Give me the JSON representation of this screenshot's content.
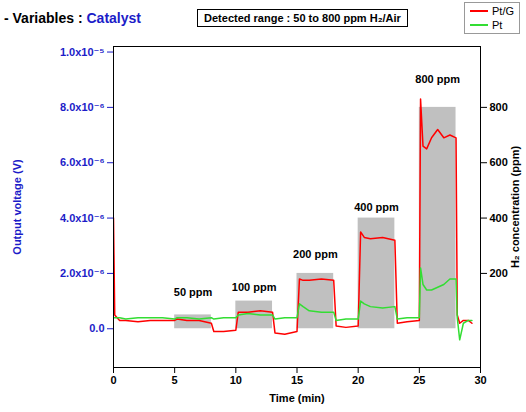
{
  "chart_data": {
    "type": "line",
    "title": [
      "- Variables : ",
      "Catalyst"
    ],
    "note": "Detected range : 50 to 800 ppm H₂/Air",
    "x_label": "Time (min)",
    "y_label": "Output voltage (V)",
    "y2_label": "H₂ concentration (ppm)",
    "xlim": [
      0,
      30
    ],
    "xticks": [
      0,
      5,
      10,
      15,
      20,
      25,
      30
    ],
    "ylim": [
      -1.4e-06,
      1.02e-05
    ],
    "yticks": [
      {
        "value": 0,
        "label": "0.0"
      },
      {
        "value": 2e-06,
        "label": "2.0x10⁻⁶"
      },
      {
        "value": 4e-06,
        "label": "4.0x10⁻⁶"
      },
      {
        "value": 6e-06,
        "label": "6.0x10⁻⁶"
      },
      {
        "value": 8e-06,
        "label": "8.0x10⁻⁶"
      },
      {
        "value": 1e-05,
        "label": "1.0x10⁻⁵"
      }
    ],
    "y2lim": [
      -140,
      1020
    ],
    "y2ticks": [
      200,
      400,
      600,
      800
    ],
    "grid": false,
    "legend": "top-right",
    "x": [
      0,
      0.1,
      0.5,
      1,
      2,
      3,
      4,
      5,
      5.2,
      6,
      7,
      8,
      8.2,
      9,
      10,
      10.2,
      11,
      12,
      13,
      13.2,
      14,
      15,
      15.2,
      15.5,
      16,
      17,
      18,
      18.2,
      19,
      20,
      20.2,
      20.5,
      21,
      22,
      23,
      23.2,
      24,
      25,
      25.1,
      25.3,
      25.6,
      26,
      26.5,
      27,
      27.5,
      28,
      28.1,
      28.3,
      28.6,
      29,
      29.3
    ],
    "series": [
      {
        "name": "Pt/G",
        "color": "#ff0000",
        "values": [
          4e-06,
          5e-07,
          3e-07,
          3e-07,
          2.5e-07,
          3e-07,
          3e-07,
          3e-07,
          3.5e-07,
          3e-07,
          3e-07,
          2e-07,
          -1e-07,
          -1e-07,
          -5e-08,
          6e-07,
          6e-07,
          6.5e-07,
          6e-07,
          -1.5e-07,
          -2e-07,
          -1e-07,
          1.8e-06,
          1.75e-06,
          1.75e-06,
          1.8e-06,
          1.75e-06,
          1e-07,
          5e-08,
          1e-07,
          3.5e-06,
          3.3e-06,
          3.25e-06,
          3.3e-06,
          3.2e-06,
          2e-07,
          2.5e-07,
          3e-07,
          8.3e-06,
          6.6e-06,
          6.5e-06,
          6.9e-06,
          7.2e-06,
          6.9e-06,
          7e-06,
          6.9e-06,
          5e-07,
          2e-07,
          3e-07,
          3e-07,
          2e-07
        ]
      },
      {
        "name": "Pt",
        "color": "#33dd33",
        "values": [
          4e-07,
          4e-07,
          4e-07,
          3.5e-07,
          4e-07,
          4e-07,
          4e-07,
          3.5e-07,
          4e-07,
          4e-07,
          3.5e-07,
          4e-07,
          3.5e-07,
          4e-07,
          4e-07,
          5e-07,
          5.5e-07,
          5e-07,
          5e-07,
          3.5e-07,
          4e-07,
          4e-07,
          9e-07,
          8e-07,
          6.5e-07,
          6e-07,
          6e-07,
          3e-07,
          3.5e-07,
          3.5e-07,
          1e-06,
          9e-07,
          8e-07,
          7.5e-07,
          8e-07,
          3.5e-07,
          4e-07,
          4e-07,
          2.2e-06,
          1.6e-06,
          1.4e-06,
          1.4e-06,
          1.5e-06,
          1.6e-06,
          1.8e-06,
          1.8e-06,
          4e-07,
          -4e-07,
          2e-07,
          3e-07,
          3e-07
        ]
      }
    ],
    "bars": {
      "type": "bar",
      "axis": "y2",
      "color": "#c0c0c0",
      "x_start": [
        5,
        10,
        15,
        20,
        25
      ],
      "x_end": [
        8,
        13,
        18,
        23,
        28
      ],
      "values": [
        50,
        100,
        200,
        400,
        800
      ]
    },
    "annotations": [
      {
        "text": "50 ppm",
        "x": 6.5,
        "y": 1.3e-06
      },
      {
        "text": "100 ppm",
        "x": 11.5,
        "y": 1.5e-06
      },
      {
        "text": "200 ppm",
        "x": 16.5,
        "y": 2.7e-06
      },
      {
        "text": "400 ppm",
        "x": 21.5,
        "y": 4.4e-06
      },
      {
        "text": "800 ppm",
        "x": 26.5,
        "y": 9e-06
      }
    ]
  }
}
